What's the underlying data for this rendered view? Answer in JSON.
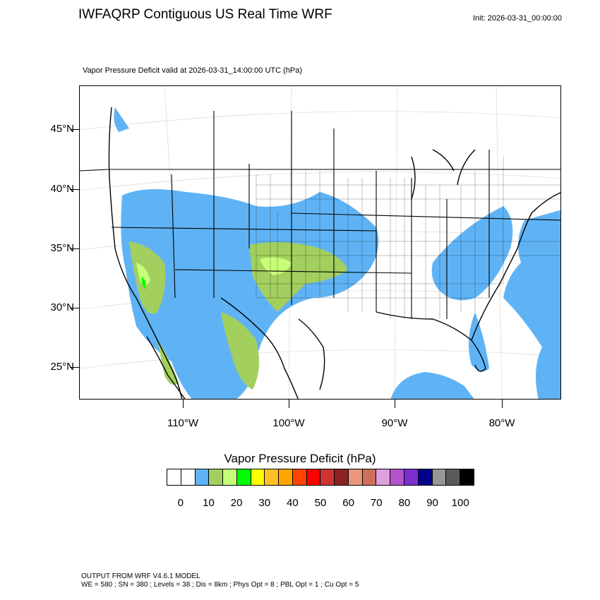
{
  "title": "IWFAQRP Contiguous US Real Time WRF",
  "init": "Init: 2026-03-31_00:00:00",
  "subtitle": "Vapor Pressure Deficit valid at 2026-03-31_14:00:00 UTC   (hPa)",
  "map": {
    "lat_labels": [
      "45°N",
      "40°N",
      "35°N",
      "30°N",
      "25°N"
    ],
    "lon_labels": [
      "110°W",
      "100°W",
      "90°W",
      "80°W"
    ],
    "land_color": "#ffffff",
    "ocean_color": "#ffffff",
    "border_color": "#000000"
  },
  "colorbar": {
    "title": "Vapor Pressure Deficit  (hPa)",
    "colors": [
      "#ffffff",
      "#ffffff",
      "#5fb3f5",
      "#a2cf5e",
      "#c7ff78",
      "#00ff00",
      "#ffff00",
      "#ffc125",
      "#ffa500",
      "#ff4500",
      "#ff0000",
      "#cd3333",
      "#8b2323",
      "#e9967a",
      "#cd6f5a",
      "#dda0dd",
      "#b452cd",
      "#7b2fd0",
      "#00008b",
      "#969696",
      "#5a5a5a",
      "#000000"
    ],
    "tick_labels": [
      "0",
      "10",
      "20",
      "30",
      "40",
      "50",
      "60",
      "70",
      "80",
      "90",
      "100"
    ]
  },
  "footer": {
    "line1": "OUTPUT FROM WRF V4.6.1 MODEL",
    "line2": "WE = 580 ; SN = 380 ; Levels = 38 ; Dis = 8km ; Phys Opt = 8 ; PBL Opt = 1 ; Cu Opt = 5"
  }
}
